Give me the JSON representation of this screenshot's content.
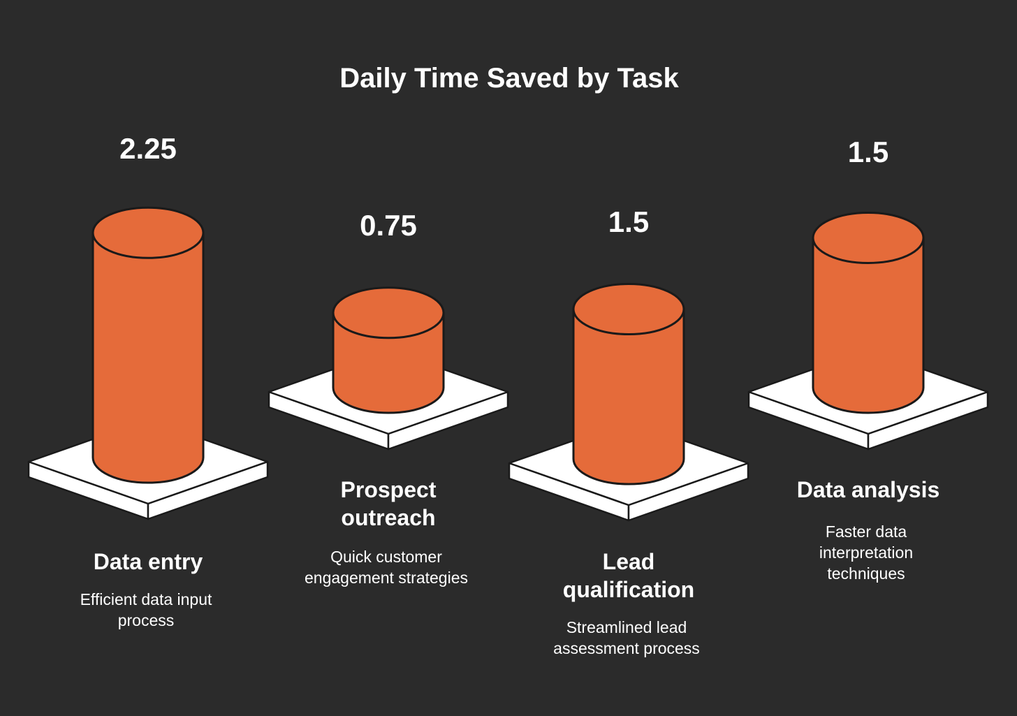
{
  "colors": {
    "background": "#2b2b2b",
    "bar_fill": "#e56b3a",
    "bar_outline": "#1a1a1a",
    "pedestal": "#ffffff",
    "text": "#ffffff"
  },
  "chart_data": {
    "type": "bar",
    "title": "Daily Time Saved by Task",
    "xlabel": "",
    "ylabel": "",
    "categories": [
      "Data entry",
      "Prospect outreach",
      "Lead qualification",
      "Data analysis"
    ],
    "category_label_lines": [
      [
        "Data entry"
      ],
      [
        "Prospect",
        "outreach"
      ],
      [
        "Lead",
        "qualification"
      ],
      [
        "Data analysis"
      ]
    ],
    "descriptions": [
      [
        "Efficient data input",
        "process"
      ],
      [
        "Quick customer",
        "engagement strategies"
      ],
      [
        "Streamlined lead",
        "assessment process"
      ],
      [
        "Faster data",
        "interpretation",
        "techniques"
      ]
    ],
    "values": [
      2.25,
      0.75,
      1.5,
      1.5
    ],
    "value_labels": [
      "2.25",
      "0.75",
      "1.5",
      "1.5"
    ],
    "grid": false,
    "legend": "none"
  }
}
